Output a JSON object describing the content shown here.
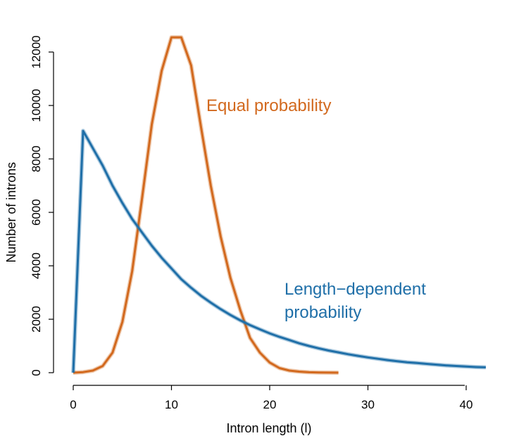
{
  "chart_data": {
    "type": "line",
    "xlabel": "Intron length (l)",
    "ylabel": "Number of introns",
    "xlim": [
      0,
      42
    ],
    "ylim": [
      0,
      12000
    ],
    "x_ticks": [
      "0",
      "10",
      "20",
      "30",
      "40"
    ],
    "y_ticks": [
      "0",
      "2000",
      "4000",
      "6000",
      "8000",
      "10000",
      "12000"
    ],
    "grid": false,
    "legend": "none",
    "annotations": [
      {
        "text": "Equal probability",
        "color": "#d2691e"
      },
      {
        "text": "Length−dependent",
        "color": "#1f6fa8"
      },
      {
        "text": "probability",
        "color": "#1f6fa8"
      }
    ],
    "series": [
      {
        "color": "#d2691e",
        "x": [
          0,
          1,
          2,
          3,
          4,
          5,
          6,
          7,
          8,
          9,
          10,
          11,
          12,
          13,
          14,
          15,
          16,
          17,
          18,
          19,
          20,
          21,
          22,
          23,
          24,
          25,
          26,
          27
        ],
        "y": [
          0,
          20,
          80,
          250,
          750,
          1900,
          3800,
          6500,
          9300,
          11300,
          12550,
          12550,
          11500,
          9200,
          7000,
          5100,
          3550,
          2350,
          1300,
          750,
          380,
          170,
          80,
          40,
          15,
          5,
          3,
          0
        ]
      },
      {
        "color": "#1f6fa8",
        "x": [
          0,
          1,
          2,
          3,
          4,
          5,
          6,
          7,
          8,
          9,
          10,
          11,
          12,
          13,
          14,
          15,
          16,
          17,
          18,
          19,
          20,
          21,
          22,
          23,
          24,
          25,
          26,
          27,
          28,
          29,
          30,
          31,
          32,
          33,
          34,
          35,
          36,
          37,
          38,
          39,
          40,
          41,
          42
        ],
        "y": [
          0,
          9050,
          8400,
          7750,
          7000,
          6350,
          5750,
          5250,
          4750,
          4300,
          3900,
          3500,
          3180,
          2880,
          2620,
          2380,
          2160,
          1960,
          1780,
          1620,
          1470,
          1340,
          1220,
          1100,
          1000,
          910,
          830,
          760,
          690,
          630,
          570,
          520,
          470,
          430,
          390,
          360,
          330,
          300,
          270,
          250,
          230,
          210,
          200
        ]
      }
    ]
  }
}
